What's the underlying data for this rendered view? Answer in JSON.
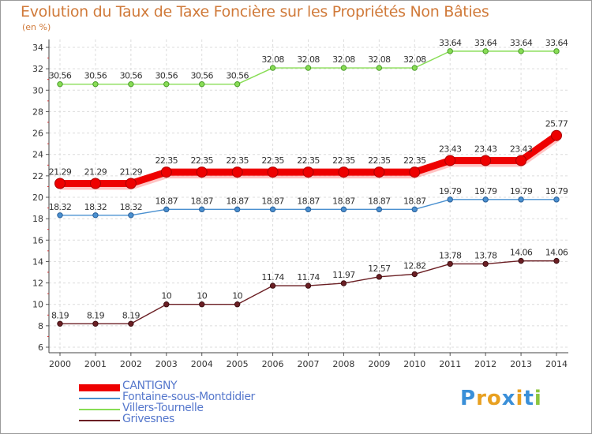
{
  "title": "Evolution du Taux de Taxe Foncière sur les Propriétés Non Bâties",
  "ylabel": "(en %)",
  "logo": {
    "text": "Proxiti",
    "letters": [
      "P",
      "r",
      "o",
      "x",
      "i",
      "t",
      "i"
    ],
    "colors": [
      "#3a8fd8",
      "#e8a020",
      "#e8a020",
      "#3a8fd8",
      "#e8a020",
      "#3a8fd8",
      "#8cc63f"
    ]
  },
  "chart_data": {
    "type": "line",
    "title": "Evolution du Taux de Taxe Foncière sur les Propriétés Non Bâties",
    "ylabel": "(en %)",
    "xlabel": "",
    "categories": [
      "2000",
      "2001",
      "2002",
      "2003",
      "2004",
      "2005",
      "2006",
      "2007",
      "2008",
      "2009",
      "2010",
      "2011",
      "2012",
      "2013",
      "2014"
    ],
    "ylim": [
      6,
      34
    ],
    "yticks": [
      6,
      8,
      10,
      12,
      14,
      16,
      18,
      20,
      22,
      24,
      26,
      28,
      30,
      32,
      34
    ],
    "grid": true,
    "legend_position": "bottom-left",
    "series": [
      {
        "name": "CANTIGNY",
        "color": "#ee0000",
        "values": [
          21.29,
          21.29,
          21.29,
          22.35,
          22.35,
          22.35,
          22.35,
          22.35,
          22.35,
          22.35,
          22.35,
          23.43,
          23.43,
          23.43,
          25.77
        ],
        "labels": [
          "21.29",
          "21.29",
          "21.29",
          "22.35",
          "22.35",
          "22.35",
          "22.35",
          "22.35",
          "22.35",
          "22.35",
          "22.35",
          "23.43",
          "23.43",
          "23.43",
          "25.77"
        ]
      },
      {
        "name": "Fontaine-sous-Montdidier",
        "color": "#4a90d0",
        "values": [
          18.32,
          18.32,
          18.32,
          18.87,
          18.87,
          18.87,
          18.87,
          18.87,
          18.87,
          18.87,
          18.87,
          19.79,
          19.79,
          19.79,
          19.79
        ],
        "labels": [
          "18.32",
          "18.32",
          "18.32",
          "18.87",
          "18.87",
          "18.87",
          "18.87",
          "18.87",
          "18.87",
          "18.87",
          "18.87",
          "19.79",
          "19.79",
          "19.79",
          "19.79"
        ]
      },
      {
        "name": "Villers-Tournelle",
        "color": "#88dd55",
        "values": [
          30.56,
          30.56,
          30.56,
          30.56,
          30.56,
          30.56,
          32.08,
          32.08,
          32.08,
          32.08,
          32.08,
          33.64,
          33.64,
          33.64,
          33.64
        ],
        "labels": [
          "30.56",
          "30.56",
          "30.56",
          "30.56",
          "30.56",
          "30.56",
          "32.08",
          "32.08",
          "32.08",
          "32.08",
          "32.08",
          "33.64",
          "33.64",
          "33.64",
          "33.64"
        ]
      },
      {
        "name": "Grivesnes",
        "color": "#6b1f24",
        "values": [
          8.19,
          8.19,
          8.19,
          10,
          10,
          10,
          11.74,
          11.74,
          11.97,
          12.57,
          12.82,
          13.78,
          13.78,
          14.06,
          14.06
        ],
        "labels": [
          "8.19",
          "8.19",
          "8.19",
          "10",
          "10",
          "10",
          "11.74",
          "11.74",
          "11.97",
          "12.57",
          "12.82",
          "13.78",
          "13.78",
          "14.06",
          "14.06"
        ]
      }
    ]
  }
}
